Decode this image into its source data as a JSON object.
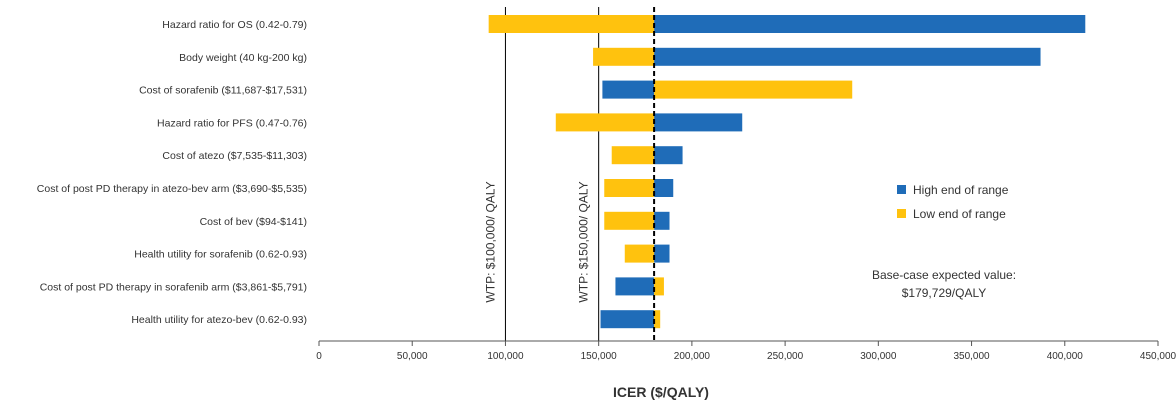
{
  "chart_data": {
    "type": "bar",
    "orientation": "horizontal",
    "subtype": "tornado",
    "categories": [
      "Hazard ratio for OS (0.42-0.79)",
      "Body weight (40 kg-200 kg)",
      "Cost of sorafenib  ($11,687-$17,531)",
      "Hazard ratio for PFS (0.47-0.76)",
      "Cost of atezo ($7,535-$11,303)",
      "Cost of post PD therapy in atezo-bev arm ($3,690-$5,535)",
      "Cost of bev ($94-$141)",
      "Health utility for sorafenib (0.62-0.93)",
      "Cost of post PD therapy in sorafenib arm  ($3,861-$5,791)",
      "Health utility for atezo-bev (0.62-0.93)"
    ],
    "base_value": 179729,
    "series": [
      {
        "name": "High end of range",
        "color": "#1F6CB8",
        "values": [
          411000,
          387000,
          152000,
          227000,
          195000,
          190000,
          188000,
          188000,
          159000,
          151000
        ]
      },
      {
        "name": "Low end of range",
        "color": "#FFC20E",
        "values": [
          91000,
          147000,
          286000,
          127000,
          157000,
          153000,
          153000,
          164000,
          185000,
          183000
        ]
      }
    ],
    "xlabel": "ICER ($/QALY)",
    "ylabel": "",
    "xlim": [
      0,
      450000
    ],
    "xticks": [
      0,
      50000,
      100000,
      150000,
      200000,
      250000,
      300000,
      350000,
      400000,
      450000
    ],
    "xtick_labels": [
      "0",
      "50,000",
      "100,000",
      "150,000",
      "200,000",
      "250,000",
      "300,000",
      "350,000",
      "400,000",
      "450,000"
    ],
    "reference_lines": [
      {
        "value": 100000,
        "label": "WTP: $100,000/ QALY",
        "style": "solid"
      },
      {
        "value": 150000,
        "label": "WTP: $150,000/ QALY",
        "style": "solid"
      },
      {
        "value": 179729,
        "label": "",
        "style": "dashed"
      }
    ],
    "annotation": {
      "line1": "Base-case expected value:",
      "line2": "$179,729/QALY"
    },
    "legend_position": "right",
    "grid": false
  }
}
